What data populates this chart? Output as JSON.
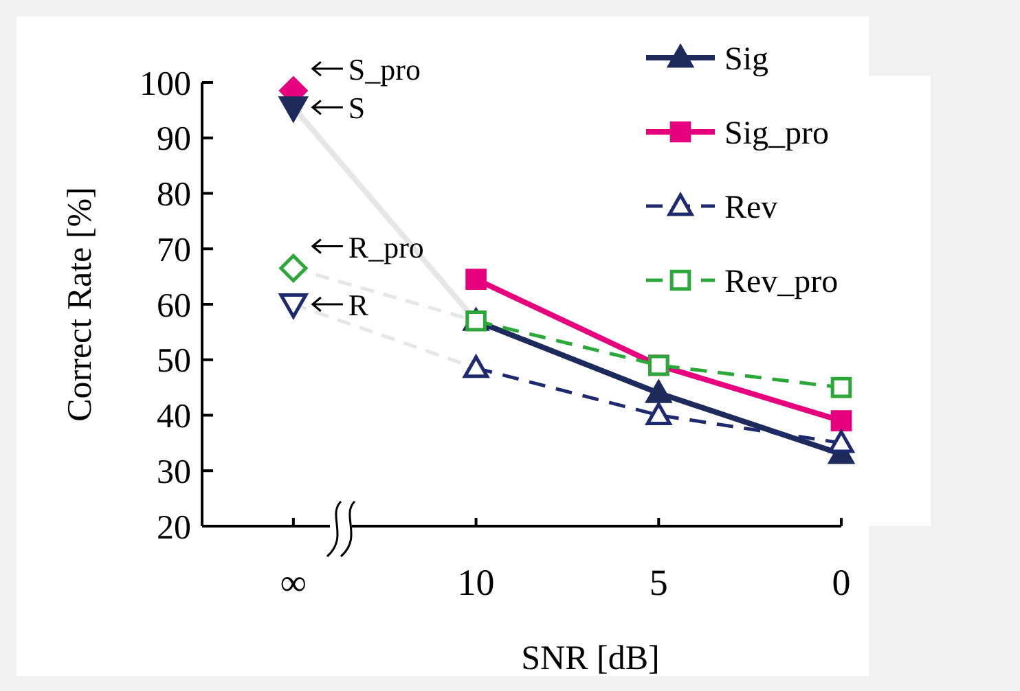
{
  "chart_data": {
    "type": "line",
    "xlabel": "SNR [dB]",
    "ylabel": "Correct Rate [%]",
    "categories": [
      "∞",
      "10",
      "5",
      "0"
    ],
    "ylim": [
      20,
      100
    ],
    "yticks": [
      20,
      30,
      40,
      50,
      60,
      70,
      80,
      90,
      100
    ],
    "grid": false,
    "legend": "top right",
    "series": [
      {
        "name": "Sig",
        "color": "#1f2a5c",
        "values": [
          null,
          57,
          44,
          33
        ],
        "marker": "triangle",
        "line_style": "solid"
      },
      {
        "name": "Sig_pro",
        "color": "#e6007e",
        "values": [
          null,
          64.5,
          49,
          39
        ],
        "marker": "square",
        "line_style": "solid"
      },
      {
        "name": "Rev",
        "color": "#1f2a6e",
        "values": [
          null,
          48.5,
          40,
          35
        ],
        "marker": "triangle",
        "line_style": "dashed"
      },
      {
        "name": "Rev_pro",
        "color": "#2ca83a",
        "values": [
          null,
          57,
          49,
          45
        ],
        "marker": "square",
        "line_style": "dashed"
      },
      {
        "color": "#e6e6e6",
        "values": [
          95.5,
          57,
          null,
          null
        ],
        "marker": "none",
        "line_style": "solid"
      },
      {
        "color": "#e6e6e6",
        "values": [
          66.5,
          57,
          null,
          null
        ],
        "marker": "none",
        "line_style": "dashed"
      },
      {
        "color": "#e6e6e6",
        "values": [
          60,
          48.5,
          null,
          null
        ],
        "marker": "none",
        "line_style": "dashed"
      },
      {
        "type": "scatter",
        "name": "S_pro",
        "color": "#e6007e",
        "x": [
          "∞"
        ],
        "values": [
          98.5
        ],
        "marker": "diamond"
      },
      {
        "type": "scatter",
        "name": "S",
        "color": "#1f2a5c",
        "x": [
          "∞"
        ],
        "values": [
          95.5
        ],
        "marker": "triangle-down"
      },
      {
        "type": "scatter",
        "name": "R_pro",
        "color": "#2ca83a",
        "x": [
          "∞"
        ],
        "values": [
          66.5
        ],
        "marker": "diamond",
        "line_style": "dashed"
      },
      {
        "type": "scatter",
        "name": "R",
        "color": "#1f2a6e",
        "x": [
          "∞"
        ],
        "values": [
          60
        ],
        "marker": "triangle-down",
        "line_style": "dashed"
      }
    ]
  }
}
